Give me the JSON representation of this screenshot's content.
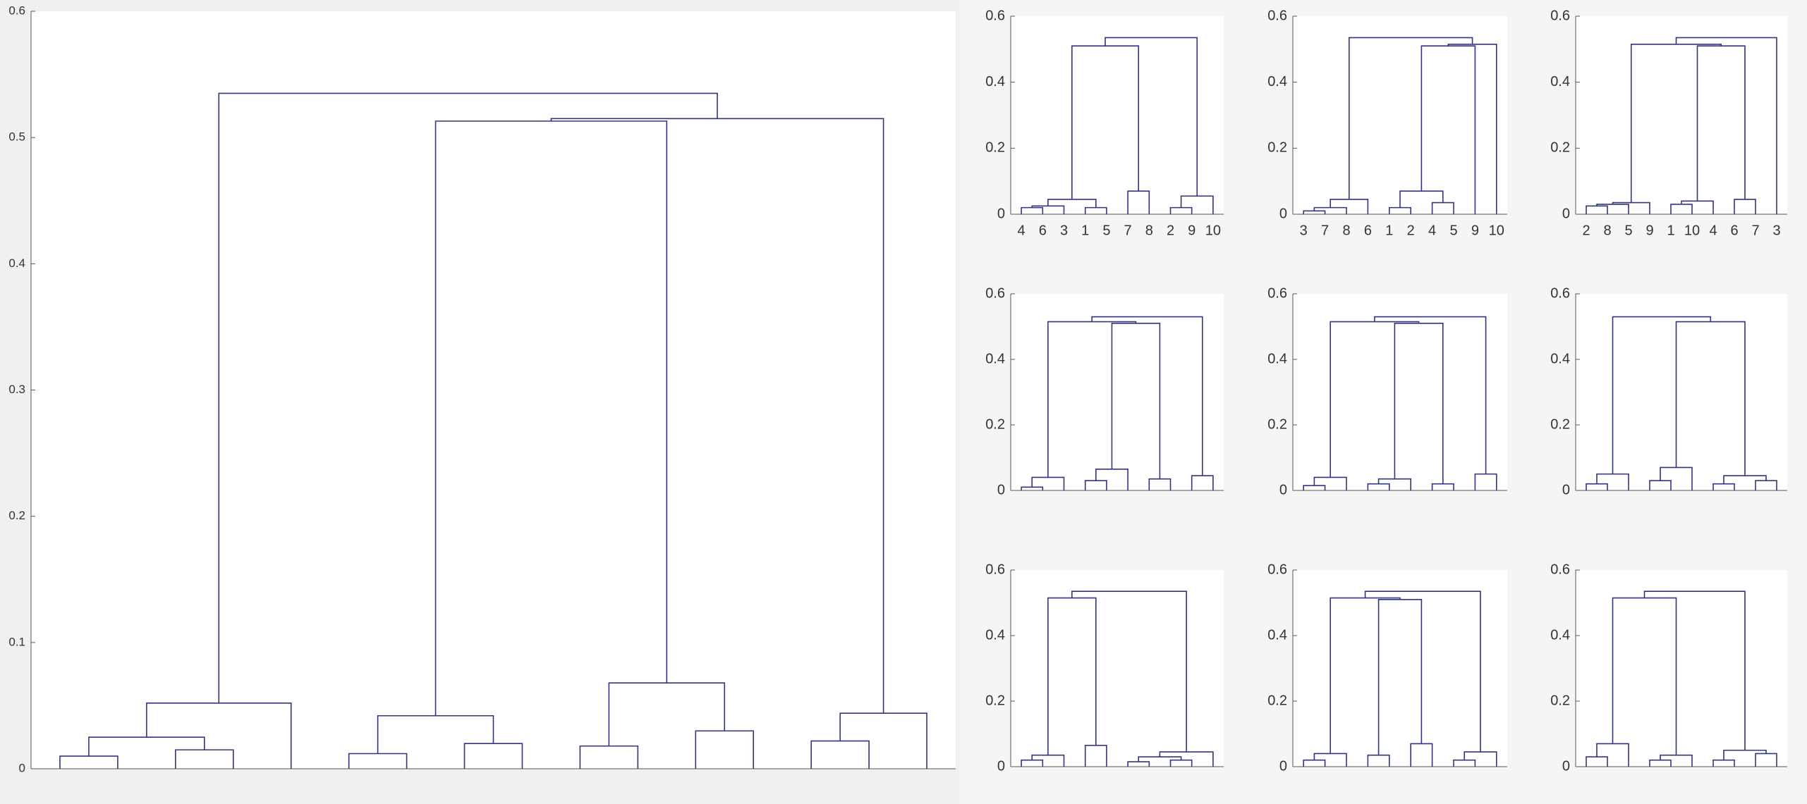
{
  "chart_data": [
    {
      "type": "dendrogram",
      "color": "#30357f",
      "ylim": [
        0,
        0.6
      ],
      "yticks": [
        0,
        0.1,
        0.2,
        0.3,
        0.4,
        0.5,
        0.6
      ],
      "merges": [
        [
          0,
          1,
          0.01
        ],
        [
          2,
          3,
          0.015
        ],
        [
          16,
          17,
          0.025
        ],
        [
          18,
          4,
          0.052
        ],
        [
          5,
          6,
          0.012
        ],
        [
          7,
          8,
          0.02
        ],
        [
          20,
          21,
          0.042
        ],
        [
          9,
          10,
          0.018
        ],
        [
          11,
          12,
          0.03
        ],
        [
          23,
          24,
          0.068
        ],
        [
          13,
          14,
          0.022
        ],
        [
          26,
          15,
          0.044
        ],
        [
          22,
          25,
          0.513
        ],
        [
          28,
          27,
          0.515
        ],
        [
          19,
          29,
          0.535
        ]
      ]
    },
    {
      "type": "dendrogram",
      "color": "#30357f",
      "ylim": [
        0,
        0.6
      ],
      "yticks": [
        0,
        0.2,
        0.4,
        0.6
      ],
      "categories": [
        "4",
        "6",
        "3",
        "1",
        "5",
        "7",
        "8",
        "2",
        "9",
        "10"
      ],
      "merges": [
        [
          0,
          1,
          0.02
        ],
        [
          10,
          2,
          0.025
        ],
        [
          3,
          4,
          0.02
        ],
        [
          11,
          12,
          0.045
        ],
        [
          5,
          6,
          0.07
        ],
        [
          13,
          14,
          0.51
        ],
        [
          7,
          8,
          0.02
        ],
        [
          16,
          9,
          0.055
        ],
        [
          15,
          17,
          0.535
        ]
      ]
    },
    {
      "type": "dendrogram",
      "color": "#30357f",
      "ylim": [
        0,
        0.6
      ],
      "yticks": [
        0,
        0.2,
        0.4,
        0.6
      ],
      "categories": [
        "3",
        "7",
        "8",
        "6",
        "1",
        "2",
        "4",
        "5",
        "9",
        "10"
      ],
      "merges": [
        [
          0,
          1,
          0.01
        ],
        [
          10,
          2,
          0.02
        ],
        [
          11,
          3,
          0.045
        ],
        [
          4,
          5,
          0.02
        ],
        [
          6,
          7,
          0.035
        ],
        [
          13,
          14,
          0.07
        ],
        [
          15,
          8,
          0.51
        ],
        [
          16,
          9,
          0.515
        ],
        [
          12,
          17,
          0.535
        ]
      ]
    },
    {
      "type": "dendrogram",
      "color": "#30357f",
      "ylim": [
        0,
        0.6
      ],
      "yticks": [
        0,
        0.2,
        0.4,
        0.6
      ],
      "categories": [
        "2",
        "8",
        "5",
        "9",
        "1",
        "10",
        "4",
        "6",
        "7",
        "3"
      ],
      "merges": [
        [
          0,
          1,
          0.025
        ],
        [
          10,
          2,
          0.03
        ],
        [
          11,
          3,
          0.035
        ],
        [
          4,
          5,
          0.03
        ],
        [
          13,
          6,
          0.04
        ],
        [
          7,
          8,
          0.045
        ],
        [
          14,
          15,
          0.51
        ],
        [
          12,
          16,
          0.515
        ],
        [
          17,
          9,
          0.535
        ]
      ]
    },
    {
      "type": "dendrogram",
      "color": "#30357f",
      "ylim": [
        0,
        0.6
      ],
      "yticks": [
        0,
        0.2,
        0.4,
        0.6
      ],
      "merges": [
        [
          0,
          1,
          0.01
        ],
        [
          10,
          2,
          0.04
        ],
        [
          3,
          4,
          0.03
        ],
        [
          12,
          5,
          0.065
        ],
        [
          6,
          7,
          0.035
        ],
        [
          8,
          9,
          0.045
        ],
        [
          13,
          14,
          0.51
        ],
        [
          11,
          16,
          0.515
        ],
        [
          17,
          15,
          0.53
        ]
      ]
    },
    {
      "type": "dendrogram",
      "color": "#30357f",
      "ylim": [
        0,
        0.6
      ],
      "yticks": [
        0,
        0.2,
        0.4,
        0.6
      ],
      "merges": [
        [
          0,
          1,
          0.015
        ],
        [
          10,
          2,
          0.04
        ],
        [
          3,
          4,
          0.02
        ],
        [
          12,
          5,
          0.035
        ],
        [
          6,
          7,
          0.02
        ],
        [
          8,
          9,
          0.05
        ],
        [
          13,
          14,
          0.51
        ],
        [
          11,
          16,
          0.515
        ],
        [
          17,
          15,
          0.53
        ]
      ]
    },
    {
      "type": "dendrogram",
      "color": "#30357f",
      "ylim": [
        0,
        0.6
      ],
      "yticks": [
        0,
        0.2,
        0.4,
        0.6
      ],
      "merges": [
        [
          0,
          1,
          0.02
        ],
        [
          10,
          2,
          0.05
        ],
        [
          3,
          4,
          0.03
        ],
        [
          12,
          5,
          0.07
        ],
        [
          6,
          7,
          0.02
        ],
        [
          8,
          9,
          0.03
        ],
        [
          14,
          15,
          0.045
        ],
        [
          13,
          16,
          0.515
        ],
        [
          11,
          17,
          0.53
        ]
      ]
    },
    {
      "type": "dendrogram",
      "color": "#30357f",
      "ylim": [
        0,
        0.6
      ],
      "yticks": [
        0,
        0.2,
        0.4,
        0.6
      ],
      "merges": [
        [
          0,
          1,
          0.02
        ],
        [
          10,
          2,
          0.035
        ],
        [
          3,
          4,
          0.065
        ],
        [
          11,
          12,
          0.515
        ],
        [
          5,
          6,
          0.015
        ],
        [
          7,
          8,
          0.02
        ],
        [
          14,
          15,
          0.03
        ],
        [
          16,
          9,
          0.045
        ],
        [
          13,
          17,
          0.535
        ]
      ]
    },
    {
      "type": "dendrogram",
      "color": "#30357f",
      "ylim": [
        0,
        0.6
      ],
      "yticks": [
        0,
        0.2,
        0.4,
        0.6
      ],
      "merges": [
        [
          0,
          1,
          0.02
        ],
        [
          10,
          2,
          0.04
        ],
        [
          3,
          4,
          0.035
        ],
        [
          5,
          6,
          0.07
        ],
        [
          12,
          13,
          0.51
        ],
        [
          11,
          14,
          0.515
        ],
        [
          7,
          8,
          0.02
        ],
        [
          16,
          9,
          0.045
        ],
        [
          15,
          17,
          0.535
        ]
      ]
    },
    {
      "type": "dendrogram",
      "color": "#30357f",
      "ylim": [
        0,
        0.6
      ],
      "yticks": [
        0,
        0.2,
        0.4,
        0.6
      ],
      "merges": [
        [
          0,
          1,
          0.03
        ],
        [
          10,
          2,
          0.07
        ],
        [
          3,
          4,
          0.02
        ],
        [
          12,
          5,
          0.035
        ],
        [
          11,
          13,
          0.515
        ],
        [
          6,
          7,
          0.02
        ],
        [
          8,
          9,
          0.04
        ],
        [
          15,
          16,
          0.05
        ],
        [
          14,
          17,
          0.535
        ]
      ]
    }
  ]
}
